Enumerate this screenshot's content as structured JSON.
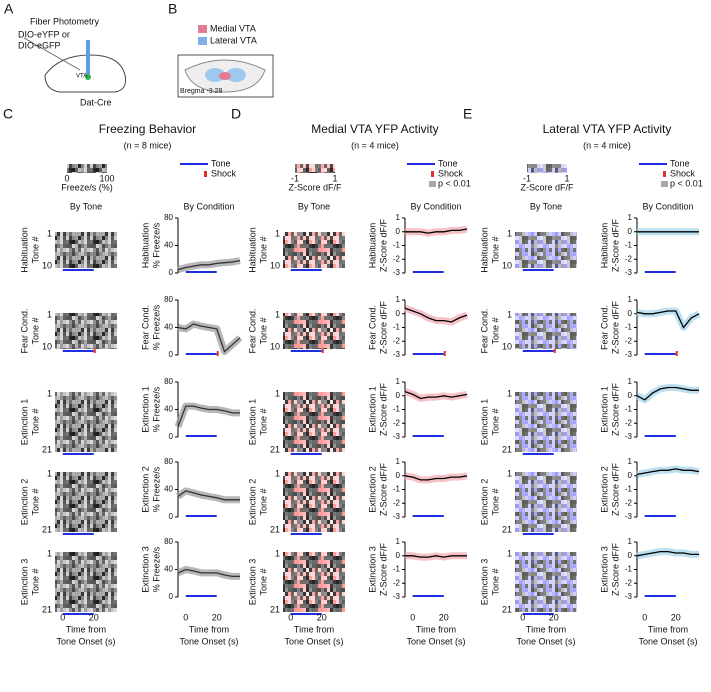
{
  "panel_a": {
    "letter": "A",
    "labels": [
      "Fiber Photometry",
      "DIO-eYFP or",
      "DIO-eGFP",
      "VTA",
      "Dat-Cre"
    ]
  },
  "panel_b": {
    "letter": "B",
    "legend": [
      "Medial VTA",
      "Lateral VTA"
    ],
    "section": "Bregma -3.28"
  },
  "rows": [
    {
      "name": "Habituation",
      "last_tone": "10"
    },
    {
      "name": "Fear Cond.",
      "last_tone": "10"
    },
    {
      "name": "Extinction 1",
      "last_tone": "21"
    },
    {
      "name": "Extinction 2",
      "last_tone": "21"
    },
    {
      "name": "Extinction 3",
      "last_tone": "21"
    }
  ],
  "tone_label": "Tone #",
  "first_tone": "1",
  "xlim": [
    -5,
    35
  ],
  "xticks": [
    0,
    20
  ],
  "xlabel": [
    "Time from",
    "Tone Onset (s)"
  ],
  "tone": [
    0,
    20
  ],
  "shock": 20,
  "columns": [
    {
      "letter": "C",
      "title": "Freezing Behavior",
      "subtitle": "(n = 8 mice)",
      "colorbar": {
        "ticks": [
          "0",
          "100"
        ],
        "label": "Freeze/s (%)"
      },
      "legend": [
        "Tone",
        "Shock"
      ],
      "heatmap_title": "By Tone",
      "line_title": "By Condition",
      "ylabel": "% Freeze/s",
      "line_color": "#333333",
      "band_color": "#999999",
      "ylim": [
        0,
        80
      ],
      "yticks": [
        0,
        40,
        80
      ],
      "x": [
        -5,
        0,
        5,
        10,
        15,
        20,
        25,
        30,
        35
      ],
      "series": [
        [
          5,
          8,
          10,
          12,
          12,
          14,
          15,
          16,
          18
        ],
        [
          40,
          38,
          45,
          42,
          40,
          38,
          5,
          15,
          25
        ],
        [
          15,
          45,
          45,
          42,
          40,
          40,
          38,
          35,
          35
        ],
        [
          30,
          38,
          35,
          32,
          30,
          28,
          25,
          25,
          25
        ],
        [
          35,
          40,
          38,
          35,
          35,
          35,
          32,
          30,
          30
        ]
      ]
    },
    {
      "letter": "D",
      "title": "Medial VTA YFP Activity",
      "subtitle": "(n = 4 mice)",
      "colorbar": {
        "ticks": [
          "-1",
          "1"
        ],
        "label": "Z-Score dF/F"
      },
      "legend": [
        "Tone",
        "Shock",
        "p < 0.01"
      ],
      "heatmap_title": "By Tone",
      "line_title": "By Condition",
      "ylabel": "Z-Score dF/F",
      "line_color": "#000000",
      "band_color": "#f2a6ae",
      "ylim": [
        -3,
        1
      ],
      "yticks": [
        1,
        0,
        -1,
        -2,
        -3
      ],
      "x": [
        -5,
        0,
        5,
        10,
        15,
        20,
        25,
        30,
        35
      ],
      "series": [
        [
          0,
          0,
          0,
          -0.1,
          0,
          0,
          0.1,
          0.1,
          0.2
        ],
        [
          0.4,
          0.2,
          0,
          -0.3,
          -0.5,
          -0.5,
          -0.6,
          -0.3,
          -0.1
        ],
        [
          0.3,
          0.1,
          -0.2,
          -0.1,
          -0.1,
          0,
          -0.1,
          0,
          0.1
        ],
        [
          0,
          -0.1,
          -0.3,
          -0.3,
          -0.2,
          -0.2,
          -0.1,
          -0.1,
          0
        ],
        [
          0,
          0,
          -0.1,
          -0.1,
          0,
          -0.1,
          0,
          0,
          0
        ]
      ]
    },
    {
      "letter": "E",
      "title": "Lateral VTA YFP Activity",
      "subtitle": "(n = 4 mice)",
      "colorbar": {
        "ticks": [
          "-1",
          "1"
        ],
        "label": "Z-Score dF/F"
      },
      "legend": [
        "Tone",
        "Shock",
        "p < 0.01"
      ],
      "heatmap_title": "By Tone",
      "line_title": "By Condition",
      "ylabel": "Z-Score dF/F",
      "line_color": "#000000",
      "band_color": "#9fd3ea",
      "ylim": [
        -3,
        1
      ],
      "yticks": [
        1,
        0,
        -1,
        -2,
        -3
      ],
      "x": [
        -5,
        0,
        5,
        10,
        15,
        20,
        25,
        30,
        35
      ],
      "series": [
        [
          0,
          0,
          0,
          0,
          0,
          0,
          0,
          0,
          0
        ],
        [
          0.1,
          0,
          0,
          0.1,
          0.2,
          0.2,
          -1,
          -0.3,
          0
        ],
        [
          0,
          -0.3,
          0.2,
          0.5,
          0.6,
          0.6,
          0.5,
          0.4,
          0.4
        ],
        [
          0.1,
          0.2,
          0.3,
          0.4,
          0.4,
          0.5,
          0.4,
          0.4,
          0.3
        ],
        [
          0,
          0.1,
          0.2,
          0.3,
          0.3,
          0.2,
          0.2,
          0.1,
          0.1
        ]
      ]
    }
  ]
}
